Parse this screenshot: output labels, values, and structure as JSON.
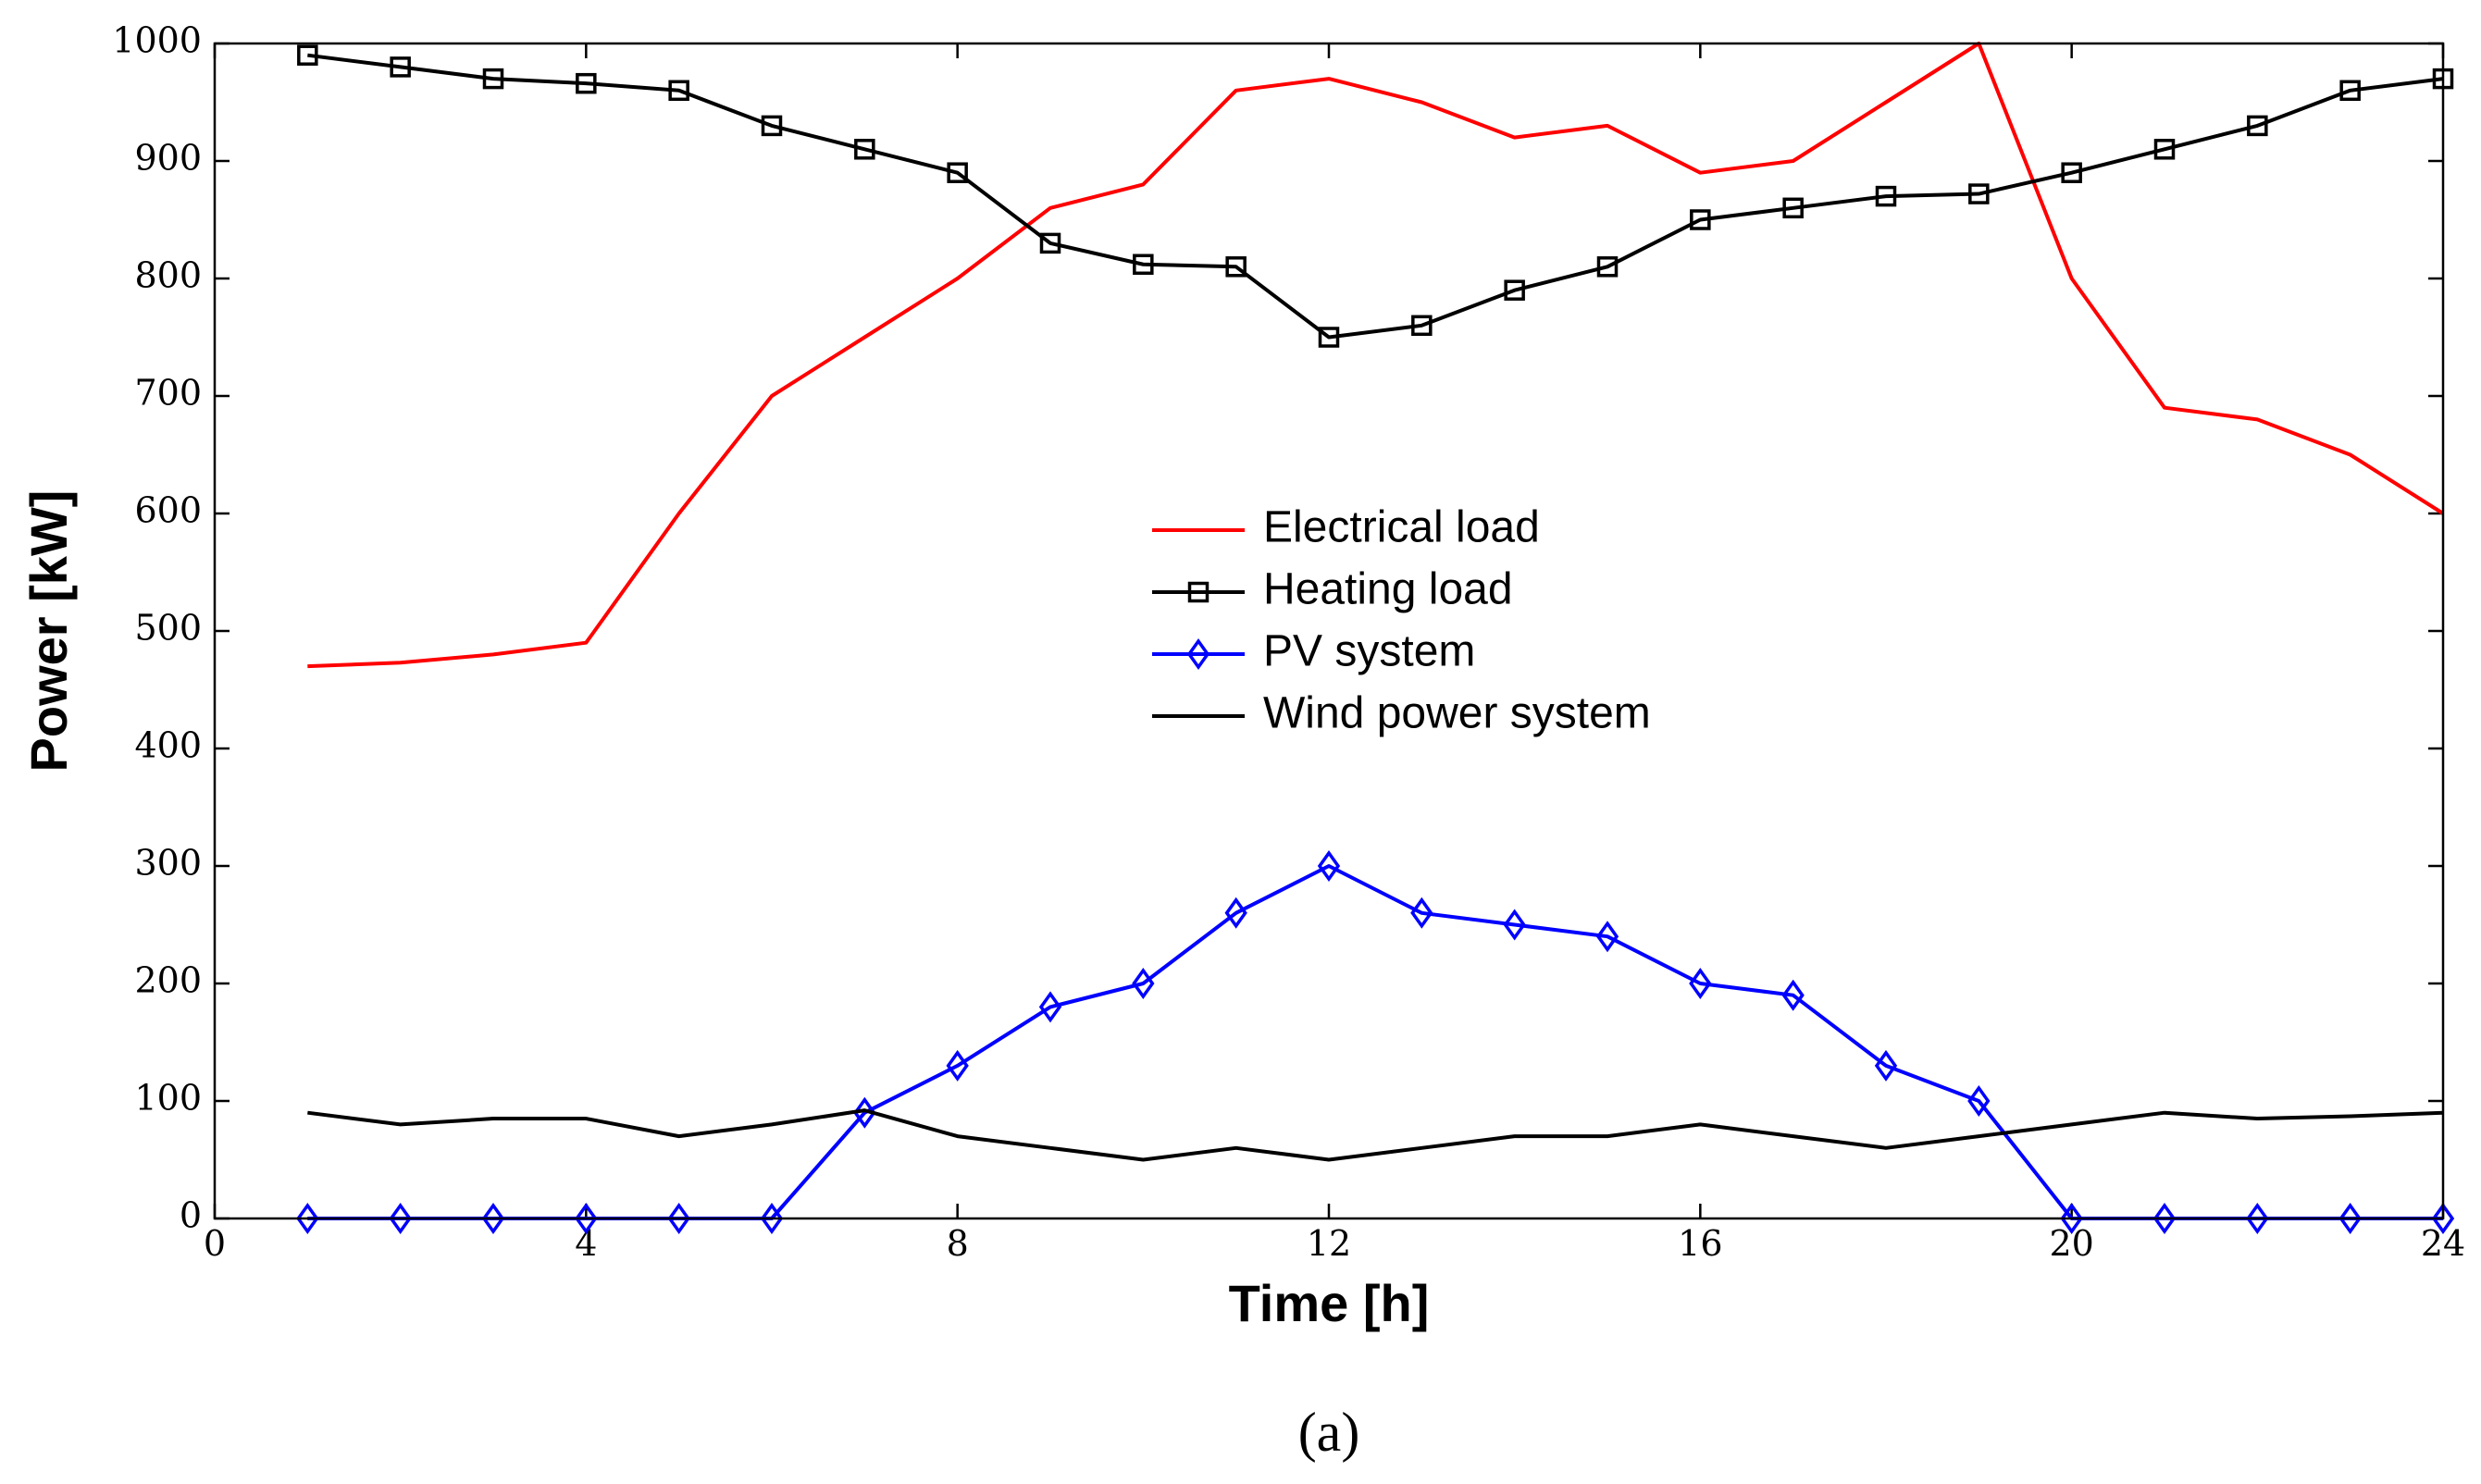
{
  "chart_data": {
    "type": "line",
    "title": "",
    "xlabel": "Time [h]",
    "ylabel": "Power [kW]",
    "caption": "(a)",
    "xlim": [
      0,
      24
    ],
    "ylim": [
      0,
      1000
    ],
    "xticks": [
      0,
      4,
      8,
      12,
      16,
      20,
      24
    ],
    "yticks": [
      0,
      100,
      200,
      300,
      400,
      500,
      600,
      700,
      800,
      900,
      1000
    ],
    "grid": false,
    "legend_position": "center",
    "x": [
      1,
      2,
      3,
      4,
      5,
      6,
      7,
      8,
      9,
      10,
      11,
      12,
      13,
      14,
      15,
      16,
      17,
      18,
      19,
      20,
      21,
      22,
      23,
      24
    ],
    "series": [
      {
        "name": "Electrical load",
        "color": "#ff0000",
        "marker": "none",
        "values": [
          470,
          473,
          480,
          490,
          600,
          700,
          750,
          800,
          860,
          880,
          960,
          970,
          950,
          920,
          930,
          890,
          900,
          950,
          1000,
          800,
          690,
          680,
          650,
          600
        ]
      },
      {
        "name": "Heating load",
        "color": "#000000",
        "marker": "square",
        "values": [
          990,
          980,
          970,
          966,
          960,
          930,
          910,
          890,
          830,
          812,
          810,
          750,
          760,
          790,
          810,
          850,
          860,
          870,
          872,
          890,
          910,
          930,
          960,
          970
        ]
      },
      {
        "name": "PV system",
        "color": "#0000ff",
        "marker": "diamond",
        "values": [
          0,
          0,
          0,
          0,
          0,
          0,
          90,
          130,
          180,
          200,
          260,
          300,
          260,
          250,
          240,
          200,
          190,
          130,
          100,
          0,
          0,
          0,
          0,
          0
        ]
      },
      {
        "name": "Wind power system",
        "color": "#000000",
        "marker": "none",
        "values": [
          90,
          80,
          85,
          85,
          70,
          80,
          92,
          70,
          60,
          50,
          60,
          50,
          60,
          70,
          70,
          80,
          70,
          60,
          70,
          80,
          90,
          85,
          87,
          90
        ]
      }
    ]
  }
}
